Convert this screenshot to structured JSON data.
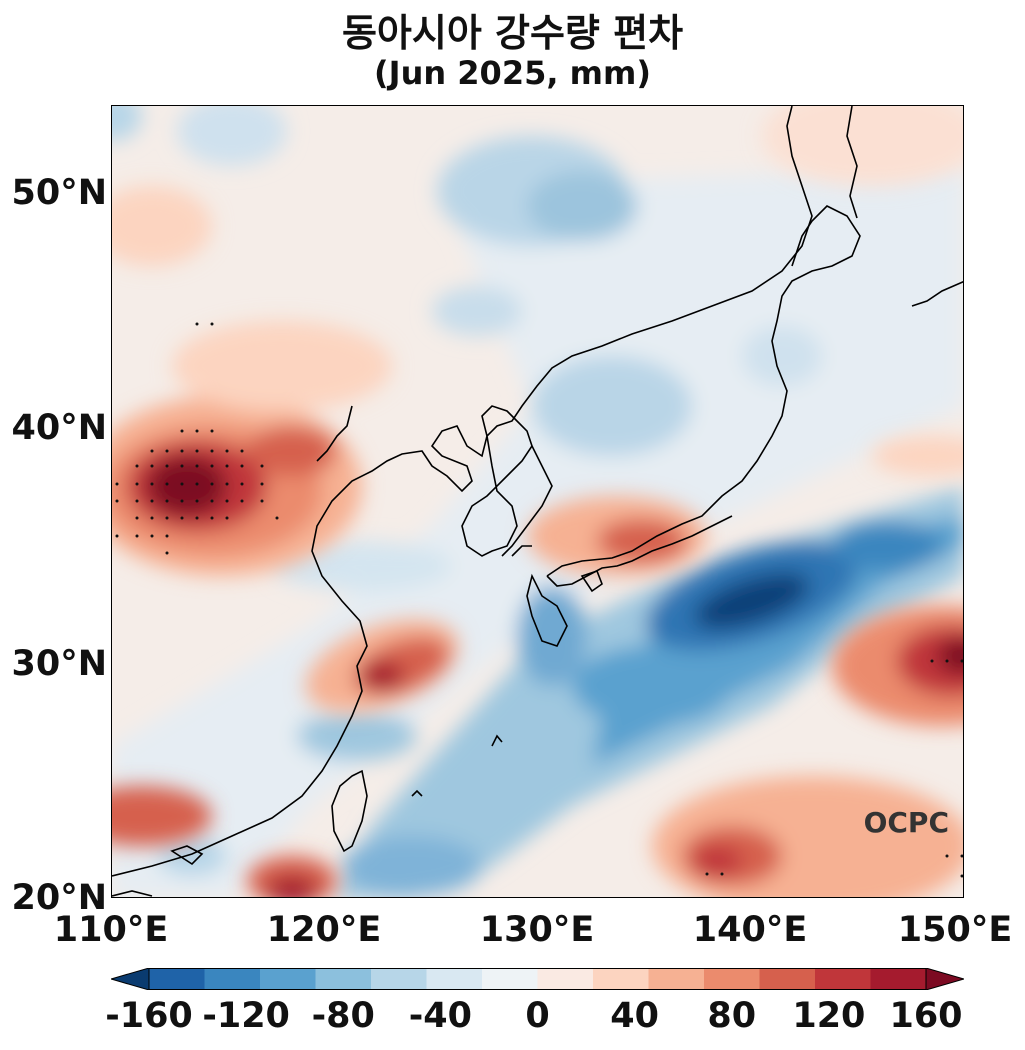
{
  "title": {
    "line1": "동아시아 강수량 편차",
    "line2": "(Jun 2025, mm)"
  },
  "map": {
    "lon_range": [
      110,
      150
    ],
    "lat_range": [
      20,
      53.5
    ],
    "field": "precipitation anomaly",
    "palette": "diverging red-blue (red = positive, blue = negative)",
    "stippling": "dots mark significant anomalies",
    "watermark": "OCPC"
  },
  "axes": {
    "y_ticks": [
      "20°N",
      "30°N",
      "40°N",
      "50°N"
    ],
    "x_ticks": [
      "110°E",
      "120°E",
      "130°E",
      "140°E",
      "150°E"
    ]
  },
  "colorbar": {
    "labels": [
      "-160",
      "-120",
      "-80",
      "-40",
      "0",
      "40",
      "80",
      "120",
      "160"
    ],
    "colors": [
      "#0a3b70",
      "#1f63a8",
      "#3a86bf",
      "#5aa1cf",
      "#8cc0dd",
      "#b7d6e8",
      "#d9e8f2",
      "#eef3f6",
      "#faeae3",
      "#fcd4c0",
      "#f6b193",
      "#eb8b6d",
      "#d6604d",
      "#c0363a",
      "#a51b2e",
      "#7c0a22"
    ],
    "extend": "both"
  }
}
